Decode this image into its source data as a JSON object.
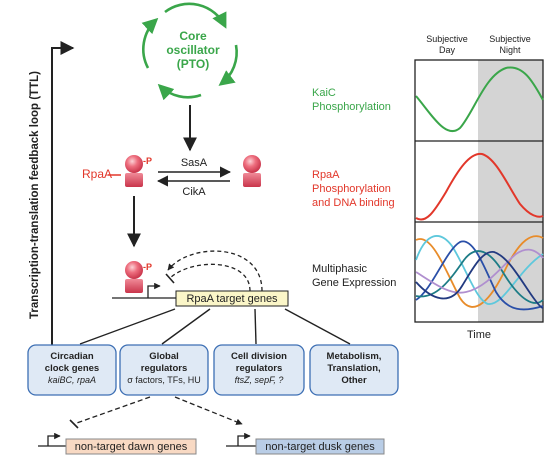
{
  "ttl_label": "Transcription-translation feedback loop (TTL)",
  "core": {
    "line1": "Core",
    "line2": "oscillator",
    "line3": "(PTO)"
  },
  "rpaa_label": "RpaA",
  "phospho_mark": "-P",
  "sasa_label": "SasA",
  "cika_label": "CikA",
  "target_genes_label": "RpaA target genes",
  "categories": [
    {
      "line1": "Circadian",
      "line2": "clock genes",
      "line3": "kaiBC, rpaA",
      "line4": ""
    },
    {
      "line1": "Global",
      "line2": "regulators",
      "line3": "σ factors, TFs, HU",
      "line4": ""
    },
    {
      "line1": "Cell division",
      "line2": "regulators",
      "line3": "ftsZ, sepF, ?",
      "line4": ""
    },
    {
      "line1": "Metabolism,",
      "line2": "Translation,",
      "line3": "Other",
      "line4": ""
    }
  ],
  "dawn_genes_label": "non-target dawn genes",
  "dusk_genes_label": "non-target dusk genes",
  "panel": {
    "header_day_1": "Subjective",
    "header_day_2": "Day",
    "header_night_1": "Subjective",
    "header_night_2": "Night",
    "time_label": "Time",
    "label_kaic_1": "KaiC",
    "label_kaic_2": "Phosphorylation",
    "label_rpaa_1": "RpaA",
    "label_rpaa_2": "Phosphorylation",
    "label_rpaa_3": "and DNA binding",
    "label_multi_1": "Multiphasic",
    "label_multi_2": "Gene Expression"
  },
  "colors": {
    "green": "#3aa64a",
    "red": "#e2372a",
    "night_shade": "#d4d4d4",
    "target_box": "#fbf6c8",
    "dawn_box": "#f8d9c3",
    "dusk_box": "#b9cde6",
    "category_box": "#dfe9f5",
    "category_border": "#3d6fb4"
  }
}
